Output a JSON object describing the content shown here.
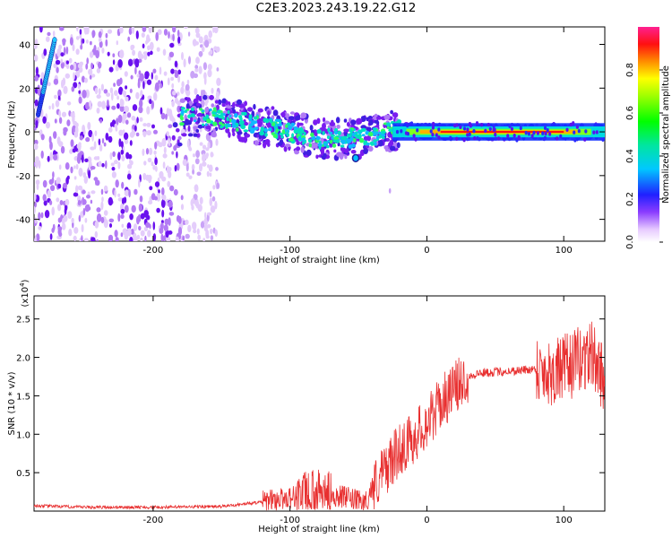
{
  "title": "C2E3.2023.243.19.22.G12",
  "chart_data": [
    {
      "type": "heatmap",
      "xlabel": "Height of straight line (km)",
      "ylabel": "Frequency (Hz)",
      "xlim": [
        -287,
        130
      ],
      "ylim": [
        -50,
        48
      ],
      "xticks": [
        -200,
        -100,
        0,
        100
      ],
      "xtick_labels": [
        "-200",
        "-100",
        "0",
        "100"
      ],
      "yticks": [
        -40,
        -20,
        0,
        20,
        40
      ],
      "ytick_labels": [
        "-40",
        "-20",
        "0",
        "20",
        "40"
      ],
      "colorbar": {
        "label": "Normalized spectral amplitude",
        "range": [
          0,
          1
        ],
        "ticks": [
          0.0,
          0.2,
          0.4,
          0.6,
          0.8
        ],
        "tick_labels": [
          "0.0",
          "0.2",
          "0.4",
          "0.6",
          "0.8"
        ]
      },
      "ridge": [
        {
          "x": -180,
          "y": 7
        },
        {
          "x": -160,
          "y": 7
        },
        {
          "x": -140,
          "y": 5
        },
        {
          "x": -120,
          "y": 3
        },
        {
          "x": -100,
          "y": 0
        },
        {
          "x": -80,
          "y": -3
        },
        {
          "x": -60,
          "y": -3
        },
        {
          "x": -40,
          "y": -2
        },
        {
          "x": -25,
          "y": 1
        },
        {
          "x": 0,
          "y": 0
        },
        {
          "x": 50,
          "y": 0
        },
        {
          "x": 100,
          "y": 0
        },
        {
          "x": 130,
          "y": 0
        }
      ]
    },
    {
      "type": "line",
      "xlabel": "Height of straight line (km)",
      "ylabel": "SNR (10 * v/v)",
      "y_multiplier_label": "(x10",
      "y_multiplier_exp": "4",
      "xlim": [
        -287,
        130
      ],
      "ylim": [
        0,
        2.8
      ],
      "xticks": [
        -200,
        -100,
        0,
        100
      ],
      "xtick_labels": [
        "-200",
        "-100",
        "0",
        "100"
      ],
      "yticks": [
        0.5,
        1.0,
        1.5,
        2.0,
        2.5
      ],
      "ytick_labels": [
        "0.5",
        "1.0",
        "1.5",
        "2.0",
        "2.5"
      ],
      "color": "#e83030",
      "series": [
        {
          "x": [
            -287,
            -250,
            -200,
            -150,
            -120,
            -100,
            -80,
            -60,
            -45,
            -40,
            -30,
            -20,
            -10,
            0,
            10,
            20,
            30,
            40,
            60,
            80,
            90,
            100,
            110,
            120,
            130
          ],
          "y": [
            0.07,
            0.05,
            0.05,
            0.06,
            0.12,
            0.18,
            0.25,
            0.18,
            0.1,
            0.3,
            0.55,
            0.8,
            0.95,
            1.15,
            1.4,
            1.6,
            1.75,
            1.8,
            1.82,
            1.85,
            1.8,
            1.85,
            1.95,
            2.05,
            1.7
          ]
        }
      ]
    }
  ]
}
